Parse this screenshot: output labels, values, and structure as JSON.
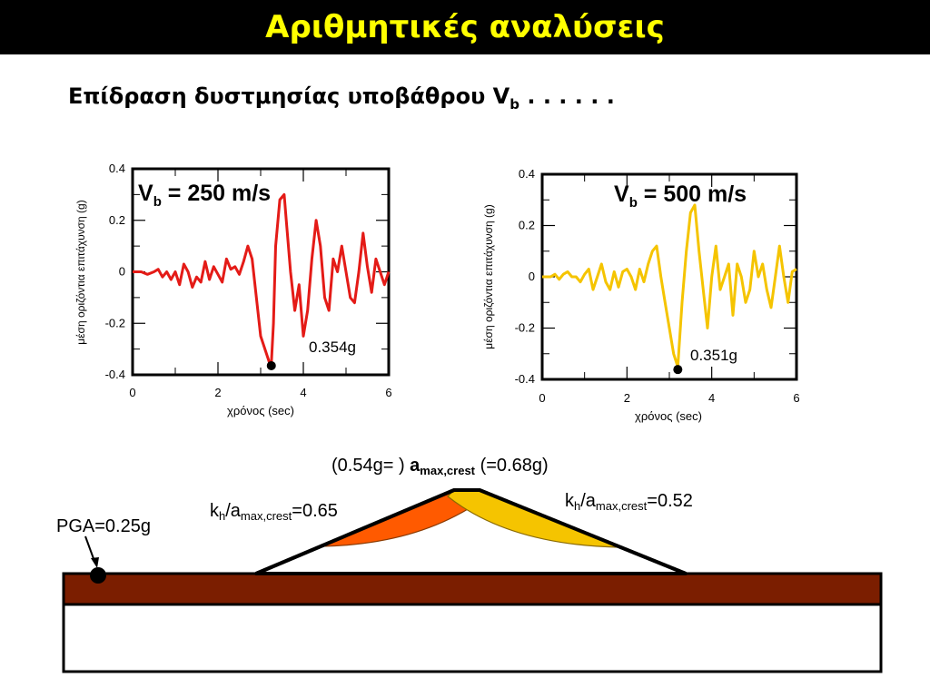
{
  "title": "Αριθμητικές αναλύσεις",
  "subtitle": {
    "text": "Επίδραση δυστμησίας υποβάθρου V",
    "sub": "b",
    "dots": " . . . . . ."
  },
  "chart_data": [
    {
      "type": "line",
      "annotation_main": "V",
      "annotation_sub": "b",
      "annotation_value": " = 250 m/s",
      "peak_label": "0.354g",
      "peak": [
        3.25,
        -0.354
      ],
      "ylabel": "μέση οριζόντια επιτάχυνση (g)",
      "xlabel": "χρόνος (sec)",
      "xlim": [
        0,
        6
      ],
      "ylim": [
        -0.4,
        0.4
      ],
      "xticks": [
        "0",
        "2",
        "4",
        "6"
      ],
      "yticks": [
        "0.4",
        "0.2",
        "0",
        "-0.2",
        "-0.4"
      ],
      "color": "#e41b17",
      "x": [
        0,
        0.2,
        0.35,
        0.5,
        0.6,
        0.7,
        0.8,
        0.9,
        1.0,
        1.1,
        1.2,
        1.3,
        1.4,
        1.5,
        1.6,
        1.7,
        1.8,
        1.9,
        2.0,
        2.1,
        2.2,
        2.3,
        2.4,
        2.5,
        2.6,
        2.7,
        2.8,
        2.9,
        3.0,
        3.1,
        3.2,
        3.25,
        3.3,
        3.35,
        3.45,
        3.55,
        3.6,
        3.7,
        3.8,
        3.9,
        4.0,
        4.1,
        4.2,
        4.3,
        4.4,
        4.5,
        4.6,
        4.7,
        4.8,
        4.9,
        5.0,
        5.1,
        5.2,
        5.3,
        5.4,
        5.5,
        5.6,
        5.7,
        5.8,
        5.9,
        6.0
      ],
      "y": [
        0.0,
        0.0,
        -0.01,
        0.0,
        0.01,
        -0.02,
        0.0,
        -0.03,
        0.0,
        -0.05,
        0.03,
        0.0,
        -0.06,
        -0.02,
        -0.04,
        0.04,
        -0.03,
        0.02,
        -0.01,
        -0.04,
        0.05,
        0.01,
        0.02,
        -0.01,
        0.04,
        0.1,
        0.05,
        -0.1,
        -0.25,
        -0.3,
        -0.35,
        -0.354,
        -0.2,
        0.1,
        0.28,
        0.3,
        0.2,
        0.0,
        -0.15,
        -0.05,
        -0.25,
        -0.15,
        0.05,
        0.2,
        0.1,
        -0.1,
        -0.15,
        0.05,
        0.0,
        0.1,
        0.0,
        -0.1,
        -0.12,
        0.0,
        0.15,
        0.02,
        -0.08,
        0.05,
        0.0,
        -0.05,
        0.0
      ]
    },
    {
      "type": "line",
      "annotation_main": "V",
      "annotation_sub": "b",
      "annotation_value": " = 500 m/s",
      "peak_label": "0.351g",
      "peak": [
        3.2,
        -0.351
      ],
      "ylabel": "μέση οριζόντια επιτάχυνση (g)",
      "xlabel": "χρόνος (sec)",
      "xlim": [
        0,
        6
      ],
      "ylim": [
        -0.4,
        0.4
      ],
      "xticks": [
        "0",
        "2",
        "4",
        "6"
      ],
      "yticks": [
        "0.4",
        "0.2",
        "0",
        "-0.2",
        "-0.4"
      ],
      "color": "#f5c400",
      "x": [
        0,
        0.2,
        0.3,
        0.4,
        0.5,
        0.6,
        0.7,
        0.8,
        0.9,
        1.0,
        1.1,
        1.2,
        1.3,
        1.4,
        1.5,
        1.6,
        1.7,
        1.8,
        1.9,
        2.0,
        2.1,
        2.2,
        2.3,
        2.4,
        2.5,
        2.6,
        2.7,
        2.8,
        2.9,
        3.0,
        3.1,
        3.2,
        3.3,
        3.4,
        3.5,
        3.6,
        3.7,
        3.8,
        3.9,
        4.0,
        4.1,
        4.2,
        4.3,
        4.4,
        4.5,
        4.6,
        4.7,
        4.8,
        4.9,
        5.0,
        5.1,
        5.2,
        5.3,
        5.4,
        5.5,
        5.6,
        5.7,
        5.8,
        5.9,
        6.0
      ],
      "y": [
        0.0,
        0.0,
        0.01,
        -0.01,
        0.01,
        0.02,
        0.0,
        0.0,
        -0.02,
        0.01,
        0.03,
        -0.05,
        0.0,
        0.05,
        -0.02,
        -0.05,
        0.02,
        -0.04,
        0.02,
        0.03,
        0.0,
        -0.05,
        0.03,
        -0.02,
        0.05,
        0.1,
        0.12,
        0.0,
        -0.1,
        -0.2,
        -0.3,
        -0.351,
        -0.1,
        0.1,
        0.25,
        0.28,
        0.1,
        -0.05,
        -0.2,
        0.0,
        0.12,
        -0.05,
        0.0,
        0.05,
        -0.15,
        0.05,
        0.0,
        -0.1,
        -0.05,
        0.1,
        0.0,
        0.05,
        -0.05,
        -0.12,
        0.0,
        0.12,
        0.0,
        -0.1,
        0.02,
        0.03
      ]
    }
  ],
  "embankment": {
    "crest_label_pre": "(0.54g= ) ",
    "crest_label_bold": "a",
    "crest_label_bold_sub": "max,crest",
    "crest_label_post": " (=0.68g)",
    "left_ratio_k": "k",
    "left_ratio_k_sub": "h",
    "left_ratio_mid": "/a",
    "left_ratio_a_sub": "max,crest",
    "left_ratio_value": "=0.65",
    "right_ratio_k": "k",
    "right_ratio_k_sub": "h",
    "right_ratio_mid": "/a",
    "right_ratio_a_sub": "max,crest",
    "right_ratio_value": "=0.52",
    "pga_label": "PGA=0.25g",
    "colors": {
      "bedrock_layer": "#7b1e00",
      "left_wedge": "#ff5a00",
      "right_wedge": "#f5c400"
    }
  }
}
